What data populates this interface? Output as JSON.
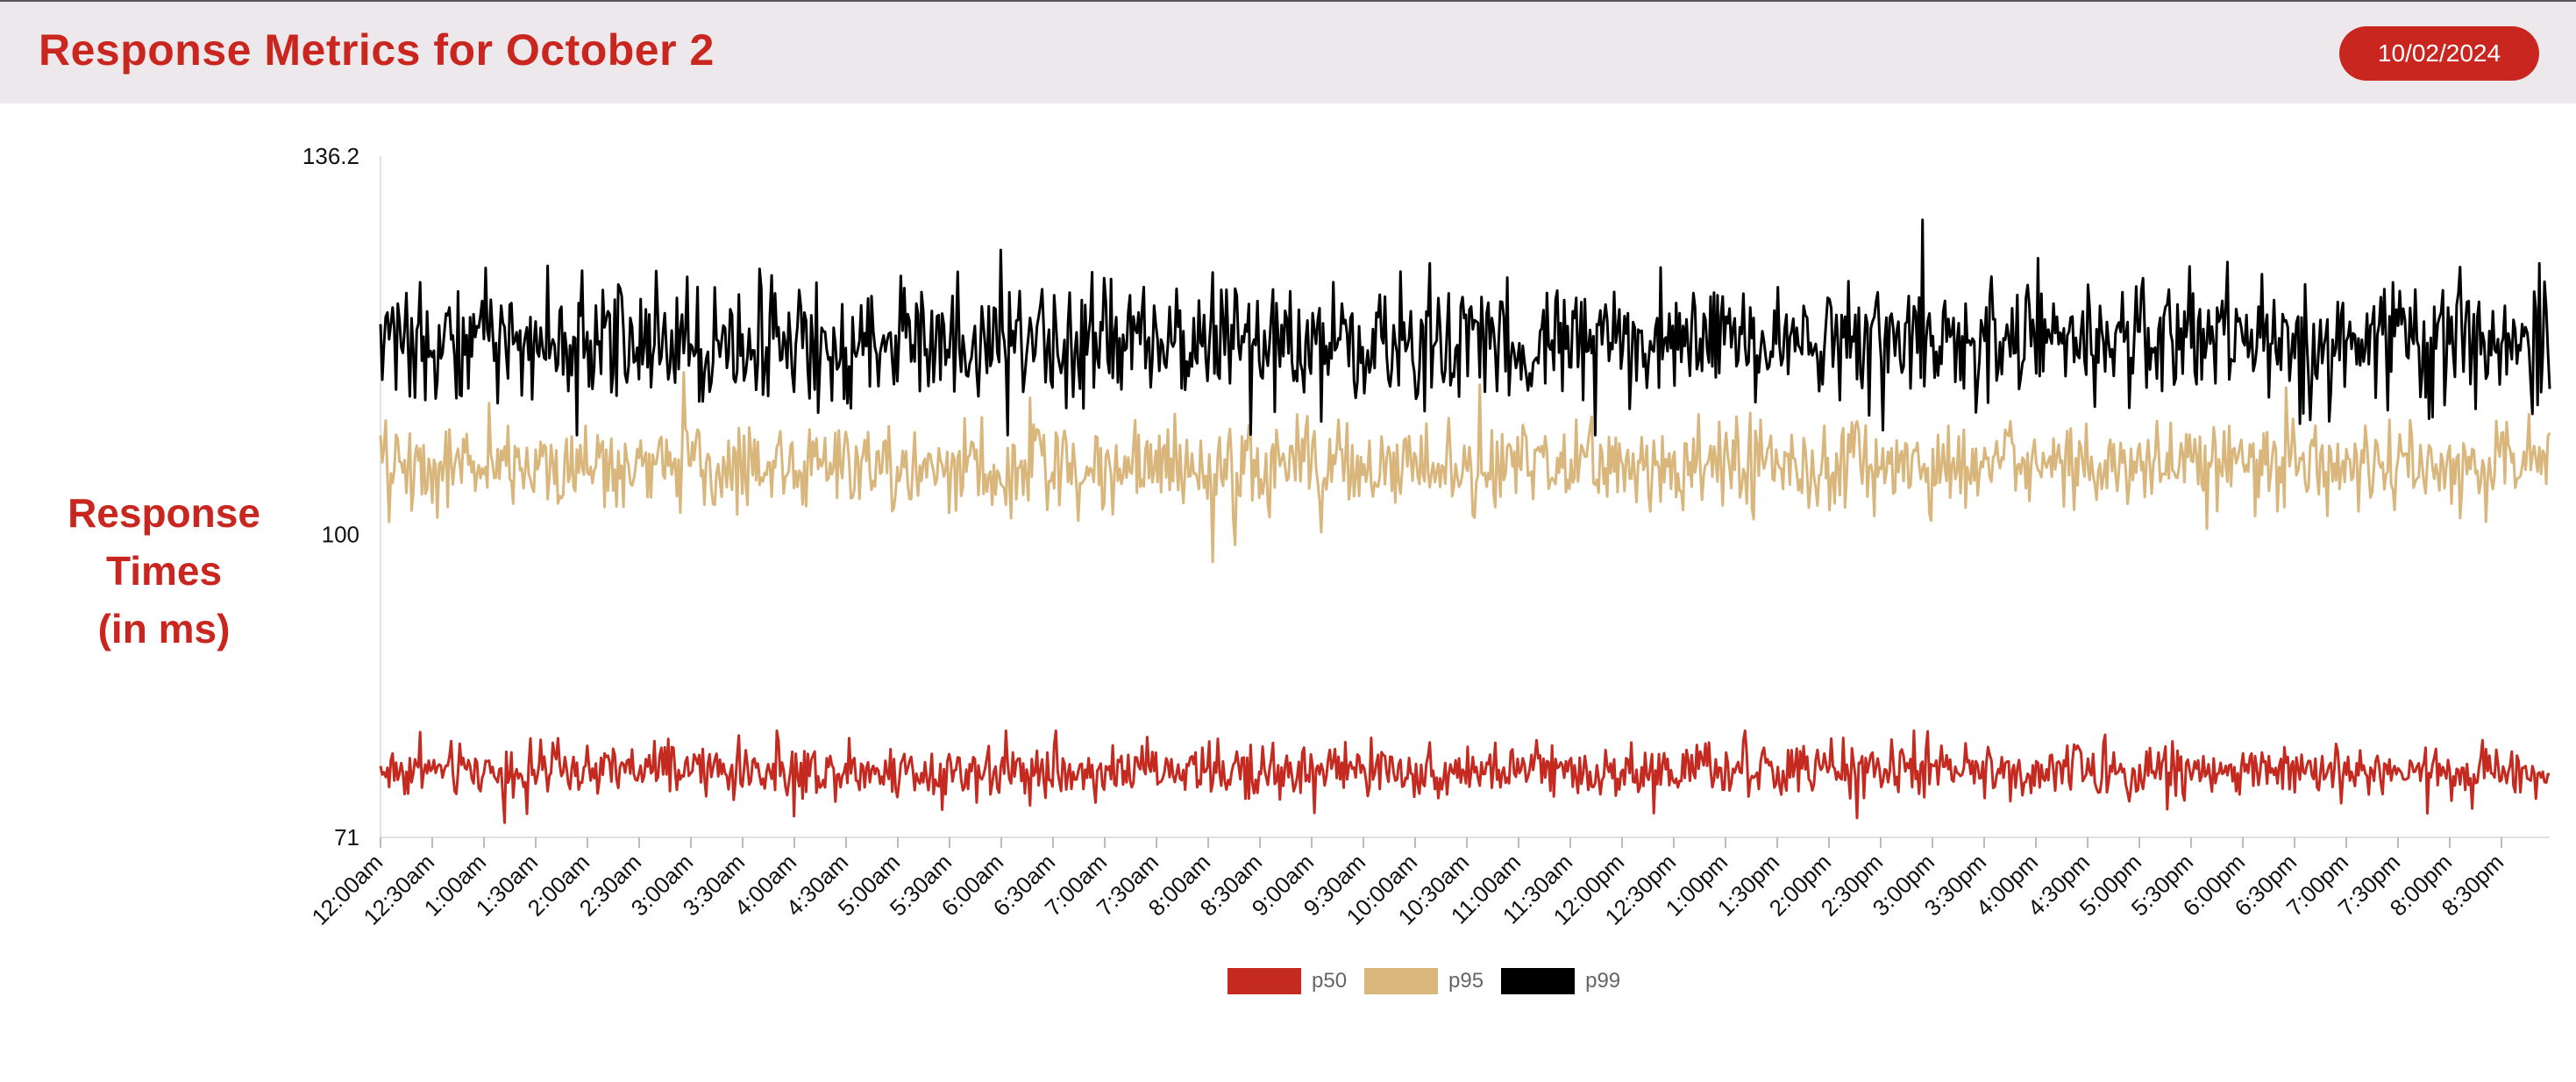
{
  "header": {
    "title": "Response Metrics for October 2",
    "date_badge": "10/02/2024"
  },
  "y_axis_title_lines": [
    "Response",
    "Times",
    "(in ms)"
  ],
  "colors": {
    "accent": "#c9261f",
    "p50": "#c42a1f",
    "p95": "#d9b67c",
    "p99": "#000000",
    "header_bg": "#ede8eb"
  },
  "chart_data": {
    "type": "line",
    "ylim": [
      71,
      136.2
    ],
    "y_ticks": [
      "136.2",
      "100",
      "71"
    ],
    "y_tick_values": [
      136.2,
      100,
      71
    ],
    "x_tick_labels": [
      "12:00am",
      "12:30am",
      "1:00am",
      "1:30am",
      "2:00am",
      "2:30am",
      "3:00am",
      "3:30am",
      "4:00am",
      "4:30am",
      "5:00am",
      "5:30am",
      "6:00am",
      "6:30am",
      "7:00am",
      "7:30am",
      "8:00am",
      "8:30am",
      "9:00am",
      "9:30am",
      "10:00am",
      "10:30am",
      "11:00am",
      "11:30am",
      "12:00pm",
      "12:30pm",
      "1:00pm",
      "1:30pm",
      "2:00pm",
      "2:30pm",
      "3:00pm",
      "3:30pm",
      "4:00pm",
      "4:30pm",
      "5:00pm",
      "5:30pm",
      "6:00pm",
      "6:30pm",
      "7:00pm",
      "7:30pm",
      "8:00pm",
      "8:30pm"
    ],
    "x_range_hours": [
      0,
      21
    ],
    "samples_per_series": 1260,
    "legend_placement": "bottom-center",
    "grid": false,
    "series": [
      {
        "name": "p50",
        "mean": 77.4,
        "spread": 2.2,
        "min": 72.2,
        "max": 81.2
      },
      {
        "name": "p95",
        "mean": 106.5,
        "spread": 3.6,
        "min": 97.2,
        "max": 115.5
      },
      {
        "name": "p99",
        "mean": 118.5,
        "spread": 5.0,
        "min": 109.5,
        "max": 136.2
      }
    ]
  }
}
